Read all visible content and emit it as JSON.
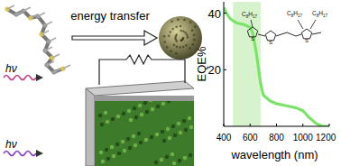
{
  "chart_data": {
    "type": "line",
    "y_label": "EQE%",
    "x_label": "wavelength (nm)",
    "x": [
      400,
      420,
      450,
      480,
      500,
      550,
      600,
      620,
      650,
      680,
      700,
      750,
      800,
      850,
      900,
      950,
      1000,
      1050,
      1100,
      1150,
      1200
    ],
    "series": [
      {
        "name": "EQE",
        "color": "#7be36a",
        "values": [
          42,
          40,
          38,
          37,
          36.5,
          36,
          35,
          33,
          25,
          15,
          11,
          9,
          8,
          7.5,
          7,
          6.5,
          5.5,
          3,
          1,
          0,
          0
        ]
      }
    ],
    "shaded_range": [
      470,
      680
    ],
    "xlim": [
      400,
      1200
    ],
    "xticks": [
      400,
      600,
      800,
      1000,
      1200
    ],
    "ylim": [
      0,
      44
    ],
    "yticks": [
      20,
      40
    ],
    "grid": false,
    "structure": {
      "side_chains": [
        "C8H17",
        "C8H17",
        "C8H17"
      ],
      "atoms": [
        "S",
        "S",
        "S"
      ]
    }
  },
  "diagram": {
    "title": "energy transfer",
    "light_labels": [
      "hν",
      "hν"
    ]
  }
}
